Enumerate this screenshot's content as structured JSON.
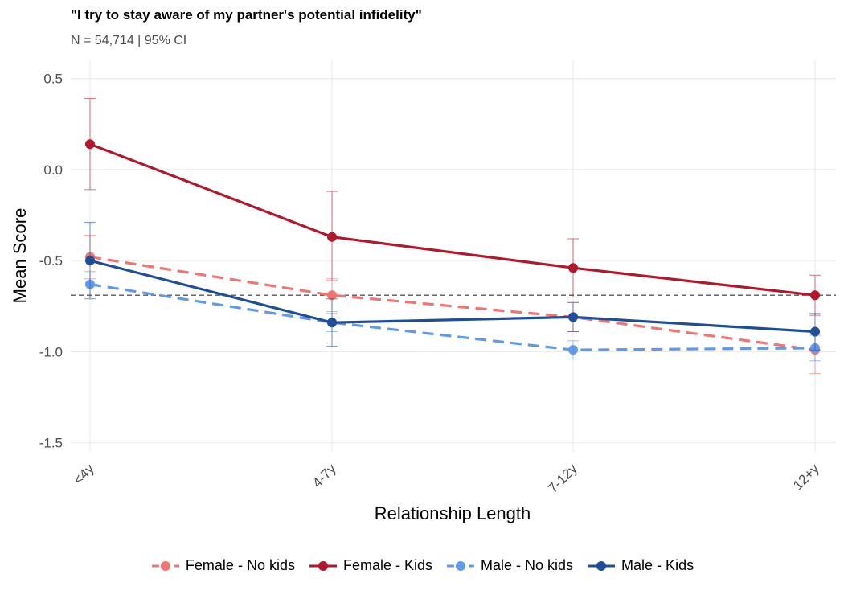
{
  "title": "\"I try to stay aware of my partner's potential infidelity\"",
  "subtitle": "N = 54,714 | 95% CI",
  "chart_data": {
    "type": "line",
    "x": [
      "<4y",
      "4-7y",
      "7-12y",
      "12+y"
    ],
    "xlabel": "Relationship Length",
    "ylabel": "Mean Score",
    "ylim": [
      -1.55,
      0.6
    ],
    "yticks": [
      0.5,
      0.0,
      -0.5,
      -1.0,
      -1.5
    ],
    "ytick_labels": [
      "0.5",
      "0.0",
      "-0.5",
      "-1.0",
      "-1.5"
    ],
    "reference_line": -0.69,
    "grid": true,
    "legend_position": "bottom",
    "series": [
      {
        "name": "Female - No kids",
        "color": "#f07470",
        "dashed": true,
        "values": [
          -0.48,
          -0.69,
          -0.81,
          -0.99
        ],
        "ci_low": [
          -0.6,
          -0.78,
          -0.89,
          -1.12
        ],
        "ci_high": [
          -0.36,
          -0.6,
          -0.73,
          -0.86
        ]
      },
      {
        "name": "Female - Kids",
        "color": "#b2182b",
        "dashed": false,
        "values": [
          0.14,
          -0.37,
          -0.54,
          -0.69
        ],
        "ci_low": [
          -0.11,
          -0.61,
          -0.7,
          -0.8
        ],
        "ci_high": [
          0.39,
          -0.12,
          -0.38,
          -0.58
        ]
      },
      {
        "name": "Male - No kids",
        "color": "#6099ea",
        "dashed": true,
        "values": [
          -0.63,
          -0.84,
          -0.99,
          -0.98
        ],
        "ci_low": [
          -0.7,
          -0.89,
          -1.04,
          -1.05
        ],
        "ci_high": [
          -0.56,
          -0.79,
          -0.94,
          -0.91
        ]
      },
      {
        "name": "Male - Kids",
        "color": "#1f4e99",
        "dashed": false,
        "values": [
          -0.5,
          -0.84,
          -0.81,
          -0.89
        ],
        "ci_low": [
          -0.71,
          -0.97,
          -0.89,
          -0.99
        ],
        "ci_high": [
          -0.29,
          -0.71,
          -0.73,
          -0.79
        ]
      }
    ]
  }
}
